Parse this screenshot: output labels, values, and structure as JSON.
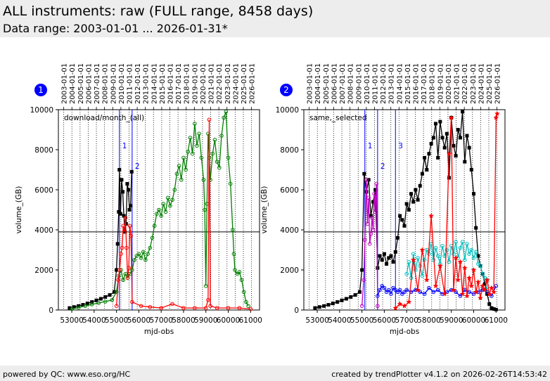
{
  "header": {
    "title": "ALL instruments: raw (FULL range, 8458 days)",
    "subtitle": "Data range: 2003-01-01 ... 2026-01-31*"
  },
  "footer": {
    "left": "powered by QC: www.eso.org/HC",
    "right": "created by trendPlotter v4.1.2 on 2026-02-26T14:53:42"
  },
  "colors": {
    "black": "#000000",
    "green": "#008000",
    "red": "#ff0000",
    "blue": "#0000ff",
    "cyan": "#00c0c0",
    "magenta": "#c000c0",
    "marker": "#0000ff"
  },
  "chart_data": [
    {
      "type": "line",
      "marker_label": "1",
      "annotation": "download/month_(all)",
      "xlabel": "mjd-obs",
      "ylabel": "volume_(GB)",
      "xlim": [
        52400,
        61400
      ],
      "ylim": [
        0,
        10000
      ],
      "xticks": [
        53000,
        54000,
        55000,
        56000,
        57000,
        58000,
        59000,
        60000,
        61000
      ],
      "yticks": [
        0,
        2000,
        4000,
        6000,
        8000,
        10000
      ],
      "top_dates": [
        "2003-01-01",
        "2004-01-01",
        "2005-01-01",
        "2006-01-01",
        "2007-01-01",
        "2008-01-01",
        "2009-01-01",
        "2010-01-01",
        "2011-01-01",
        "2012-01-01",
        "2013-01-01",
        "2014-01-01",
        "2015-01-01",
        "2016-01-01",
        "2017-01-01",
        "2018-01-01",
        "2019-01-01",
        "2020-01-01",
        "2021-01-01",
        "2022-01-01",
        "2023-01-01",
        "2024-01-01",
        "2025-01-01",
        "2026-01-01"
      ],
      "top_dates_mjd": [
        52640,
        53005,
        53371,
        53736,
        54101,
        54466,
        54832,
        55197,
        55562,
        55927,
        56293,
        56658,
        57023,
        57388,
        57754,
        58119,
        58484,
        58849,
        59215,
        59580,
        59945,
        60310,
        60676,
        61041
      ],
      "hline": 3900,
      "vlines": [
        {
          "x": 55130,
          "label": "1"
        },
        {
          "x": 55700,
          "label": "2"
        }
      ],
      "series": [
        {
          "color": "#000000",
          "marker": "square",
          "x": [
            52900,
            53100,
            53300,
            53500,
            53700,
            53900,
            54100,
            54300,
            54500,
            54700,
            54900,
            55000,
            55050,
            55100,
            55130,
            55180,
            55230,
            55280,
            55330,
            55380,
            55430,
            55480,
            55530,
            55580,
            55630,
            55680
          ],
          "y": [
            100,
            150,
            200,
            260,
            330,
            400,
            480,
            560,
            650,
            750,
            900,
            2000,
            3300,
            4900,
            7000,
            4800,
            6500,
            5900,
            4700,
            3900,
            4300,
            6300,
            6000,
            5000,
            5200,
            6900
          ]
        },
        {
          "color": "#008000",
          "marker": "circle",
          "x": [
            53000,
            53300,
            53600,
            53900,
            54200,
            54500,
            54800,
            55000,
            55100,
            55200,
            55300,
            55400,
            55500,
            55600,
            55700,
            55800,
            55900,
            56000,
            56100,
            56200,
            56300,
            56400,
            56500,
            56600,
            56700,
            56800,
            56900,
            57000,
            57100,
            57200,
            57300,
            57400,
            57500,
            57600,
            57700,
            57800,
            57900,
            58000,
            58100,
            58200,
            58300,
            58400,
            58500,
            58600,
            58700,
            58800,
            58900,
            58950,
            59000,
            59050,
            59100,
            59150,
            59200,
            59300,
            59400,
            59500,
            59600,
            59700,
            59800,
            59900,
            60000,
            60100,
            60200,
            60250,
            60300,
            60400,
            60500,
            60600,
            60700,
            60800,
            60900
          ],
          "y": [
            50,
            120,
            200,
            280,
            350,
            420,
            500,
            900,
            1700,
            2000,
            1500,
            1800,
            1600,
            1800,
            2000,
            2500,
            2700,
            2800,
            2600,
            2900,
            2500,
            2800,
            3100,
            3600,
            4200,
            4800,
            5000,
            4700,
            5300,
            4900,
            5600,
            5200,
            5500,
            6000,
            6800,
            7200,
            6500,
            7600,
            7000,
            7900,
            8600,
            7800,
            9300,
            8200,
            8800,
            7600,
            6500,
            5000,
            1200,
            5300,
            8800,
            7600,
            6500,
            7800,
            8500,
            7400,
            7100,
            8700,
            9600,
            9900,
            7600,
            6300,
            4000,
            2800,
            2000,
            1800,
            1900,
            1500,
            900,
            400,
            200
          ]
        },
        {
          "color": "#ff0000",
          "marker": "circle",
          "x": [
            55000,
            55080,
            55130,
            55200,
            55250,
            55300,
            55350,
            55400,
            55450,
            55500,
            55550,
            55600,
            55650,
            55700,
            56100,
            56500,
            57000,
            57500,
            58000,
            58500,
            59000,
            59100,
            59150,
            59200,
            59500,
            60000,
            60500,
            61000
          ],
          "y": [
            200,
            1500,
            2000,
            2800,
            3100,
            4200,
            3900,
            4600,
            3100,
            1600,
            2100,
            4200,
            3700,
            400,
            200,
            150,
            100,
            300,
            100,
            100,
            100,
            500,
            9500,
            200,
            100,
            100,
            100,
            50
          ]
        }
      ]
    },
    {
      "type": "line",
      "marker_label": "2",
      "annotation": "same,_selected",
      "xlabel": "mjd-obs",
      "ylabel": "volume_(GB)",
      "xlim": [
        52400,
        61400
      ],
      "ylim": [
        0,
        10000
      ],
      "xticks": [
        53000,
        54000,
        55000,
        56000,
        57000,
        58000,
        59000,
        60000,
        61000
      ],
      "yticks": [
        0,
        2000,
        4000,
        6000,
        8000,
        10000
      ],
      "top_dates": [
        "2003-01-01",
        "2004-01-01",
        "2005-01-01",
        "2006-01-01",
        "2007-01-01",
        "2008-01-01",
        "2009-01-01",
        "2010-01-01",
        "2011-01-01",
        "2012-01-01",
        "2013-01-01",
        "2014-01-01",
        "2015-01-01",
        "2016-01-01",
        "2017-01-01",
        "2018-01-01",
        "2019-01-01",
        "2020-01-01",
        "2021-01-01",
        "2022-01-01",
        "2023-01-01",
        "2024-01-01",
        "2025-01-01",
        "2026-01-01"
      ],
      "top_dates_mjd": [
        52640,
        53005,
        53371,
        53736,
        54101,
        54466,
        54832,
        55197,
        55562,
        55927,
        56293,
        56658,
        57023,
        57388,
        57754,
        58119,
        58484,
        58849,
        59215,
        59580,
        59945,
        60310,
        60676,
        61041
      ],
      "hline": 3900,
      "vlines": [
        {
          "x": 55130,
          "label": "1"
        },
        {
          "x": 55700,
          "label": "2"
        },
        {
          "x": 56500,
          "label": "3"
        }
      ],
      "series": [
        {
          "color": "#000000",
          "marker": "square",
          "x": [
            52900,
            53100,
            53300,
            53500,
            53700,
            53900,
            54100,
            54300,
            54500,
            54700,
            54900,
            55000,
            55100,
            55200,
            55300,
            55400,
            55500,
            55600,
            55700,
            55800,
            55900,
            56000,
            56100,
            56200,
            56300,
            56400,
            56500,
            56600,
            56700,
            56800,
            56900,
            57000,
            57100,
            57200,
            57300,
            57400,
            57500,
            57600,
            57700,
            57800,
            57900,
            58000,
            58100,
            58200,
            58300,
            58400,
            58500,
            58600,
            58700,
            58800,
            58900,
            59000,
            59100,
            59200,
            59300,
            59400,
            59500,
            59600,
            59700,
            59800,
            59900,
            60000,
            60100,
            60200,
            60300,
            60400,
            60500,
            60600,
            60700,
            60800,
            60900,
            61000
          ],
          "y": [
            100,
            150,
            200,
            260,
            330,
            400,
            480,
            560,
            650,
            750,
            900,
            2000,
            6800,
            5900,
            6500,
            4700,
            5400,
            6000,
            2100,
            2700,
            2500,
            2800,
            2300,
            2600,
            2700,
            2400,
            2900,
            3600,
            4700,
            4500,
            4200,
            5300,
            5000,
            5800,
            5400,
            6000,
            5500,
            6200,
            6800,
            7600,
            7000,
            7800,
            8300,
            8600,
            9300,
            7600,
            9400,
            8600,
            8100,
            8800,
            6600,
            9600,
            8200,
            7700,
            9000,
            8600,
            9900,
            7400,
            8700,
            8100,
            7000,
            5800,
            4100,
            2700,
            2200,
            1800,
            1300,
            800,
            300,
            100,
            50,
            20
          ]
        },
        {
          "color": "#c000c0",
          "marker": "circle",
          "x": [
            55000,
            55080,
            55130,
            55200,
            55250,
            55300,
            55350,
            55400,
            55450,
            55500,
            55550,
            55600,
            55650,
            55700
          ],
          "y": [
            200,
            1500,
            3500,
            6500,
            4300,
            5600,
            3300,
            3800,
            4600,
            4000,
            5800,
            4900,
            6300,
            200
          ]
        },
        {
          "color": "#0000ff",
          "marker": "circle",
          "x": [
            55700,
            55800,
            55900,
            56000,
            56100,
            56200,
            56300,
            56400,
            56500,
            56600,
            56700,
            56800,
            56900,
            57000,
            57200,
            57400,
            57600,
            57800,
            58000,
            58200,
            58400,
            58600,
            58800,
            59000,
            59200,
            59400,
            59600,
            59800,
            60000,
            60200,
            60400,
            60600,
            60800,
            61000
          ],
          "y": [
            700,
            1000,
            1200,
            1100,
            900,
            1000,
            800,
            1100,
            1000,
            900,
            1000,
            800,
            900,
            1000,
            900,
            1000,
            900,
            800,
            1100,
            900,
            1000,
            800,
            900,
            1000,
            900,
            700,
            1000,
            900,
            800,
            900,
            1000,
            900,
            700,
            1200
          ]
        },
        {
          "color": "#00c0c0",
          "marker": "circle",
          "x": [
            57000,
            57100,
            57200,
            57300,
            57400,
            57500,
            57600,
            57700,
            57800,
            57900,
            58000,
            58100,
            58200,
            58300,
            58400,
            58500,
            58600,
            58700,
            58800,
            58900,
            59000,
            59100,
            59200,
            59300,
            59400,
            59500,
            59600,
            59700,
            59800,
            59900,
            60000,
            60100,
            60200,
            60300,
            60400,
            60500,
            60600
          ],
          "y": [
            1800,
            2400,
            1600,
            2800,
            2000,
            2600,
            2200,
            1700,
            2500,
            3000,
            2800,
            3300,
            2500,
            3100,
            2700,
            2300,
            3200,
            2700,
            3000,
            2400,
            3200,
            2800,
            3400,
            2600,
            3100,
            3400,
            2500,
            3300,
            2800,
            3000,
            2600,
            2900,
            2300,
            2200,
            1800,
            1600,
            1000
          ]
        },
        {
          "color": "#ff0000",
          "marker": "star",
          "x": [
            56500,
            56700,
            56900,
            57100,
            57300,
            57500,
            57700,
            57900,
            58100,
            58300,
            58500,
            58700,
            58900,
            59000,
            59100,
            59200,
            59300,
            59400,
            59500,
            59600,
            59700,
            59800,
            59900,
            60000,
            60100,
            60200,
            60300,
            60400,
            60500,
            60600,
            60700,
            60800,
            60900,
            61000,
            61050
          ],
          "y": [
            100,
            300,
            200,
            400,
            2500,
            1000,
            3000,
            1500,
            4700,
            1200,
            2200,
            800,
            7800,
            9600,
            1000,
            2600,
            1500,
            2400,
            800,
            2100,
            700,
            1600,
            1200,
            2000,
            900,
            1400,
            600,
            1200,
            1000,
            1500,
            800,
            1100,
            900,
            9600,
            9800
          ]
        }
      ]
    }
  ]
}
